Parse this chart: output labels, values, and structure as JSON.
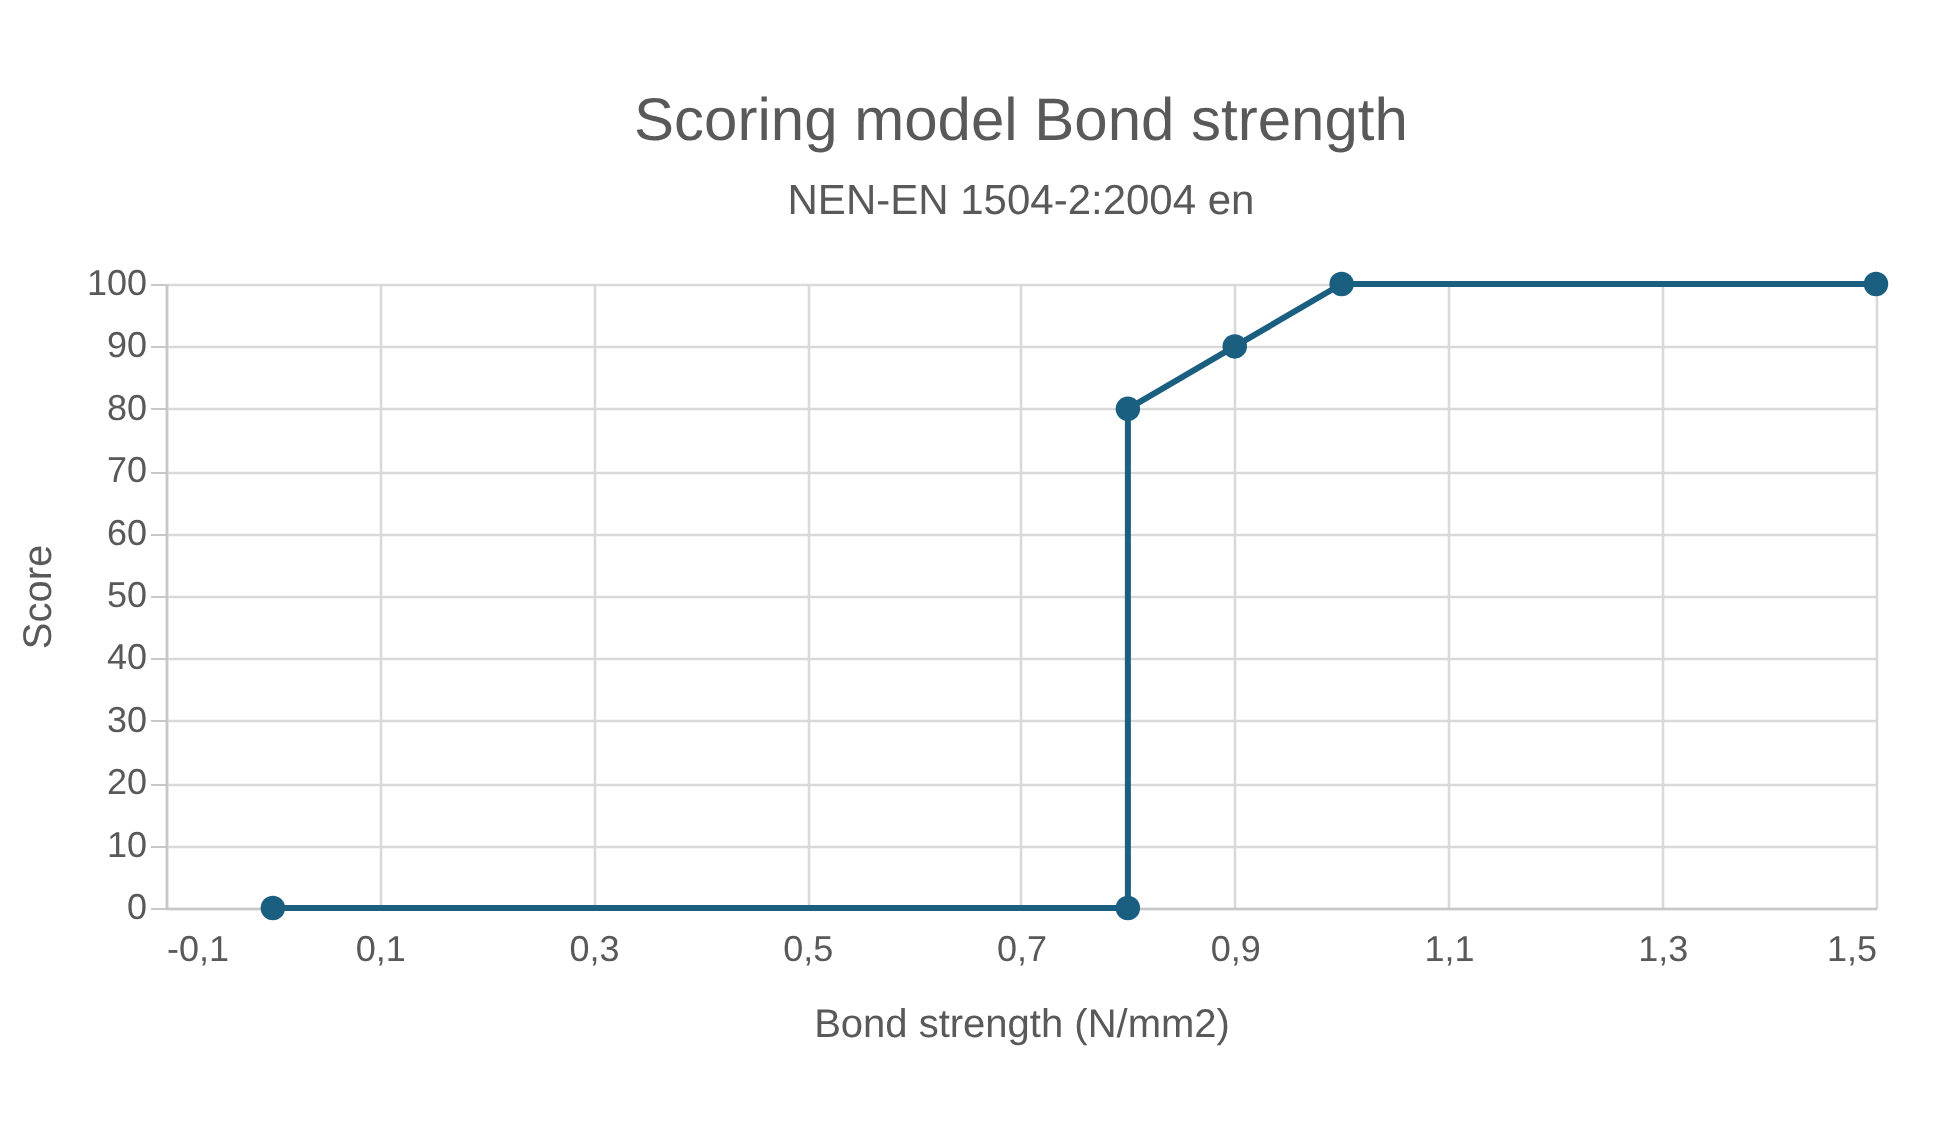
{
  "chart_data": {
    "type": "line",
    "title": "Scoring model Bond strength",
    "subtitle": "NEN-EN 1504-2:2004 en",
    "xlabel": "Bond strength (N/mm2)",
    "ylabel": "Score",
    "x": [
      0,
      0.8,
      0.8,
      0.9,
      1.0,
      1.5
    ],
    "series": [
      {
        "color": "#1a5e80",
        "values": [
          0,
          0,
          80,
          90,
          100,
          100
        ]
      }
    ],
    "xlim": [
      -0.1,
      1.5
    ],
    "xticks": [
      {
        "value": -0.1,
        "label": "-0,1"
      },
      {
        "value": 0.1,
        "label": "0,1"
      },
      {
        "value": 0.3,
        "label": "0,3"
      },
      {
        "value": 0.5,
        "label": "0,5"
      },
      {
        "value": 0.7,
        "label": "0,7"
      },
      {
        "value": 0.9,
        "label": "0,9"
      },
      {
        "value": 1.1,
        "label": "1,1"
      },
      {
        "value": 1.3,
        "label": "1,3"
      },
      {
        "value": 1.5,
        "label": "1,5"
      }
    ],
    "ylim": [
      0,
      100
    ],
    "yticks": [
      0,
      10,
      20,
      30,
      40,
      50,
      60,
      70,
      80,
      90,
      100
    ],
    "grid": true,
    "marker": "circle",
    "line_style": "solid",
    "legend": false
  }
}
